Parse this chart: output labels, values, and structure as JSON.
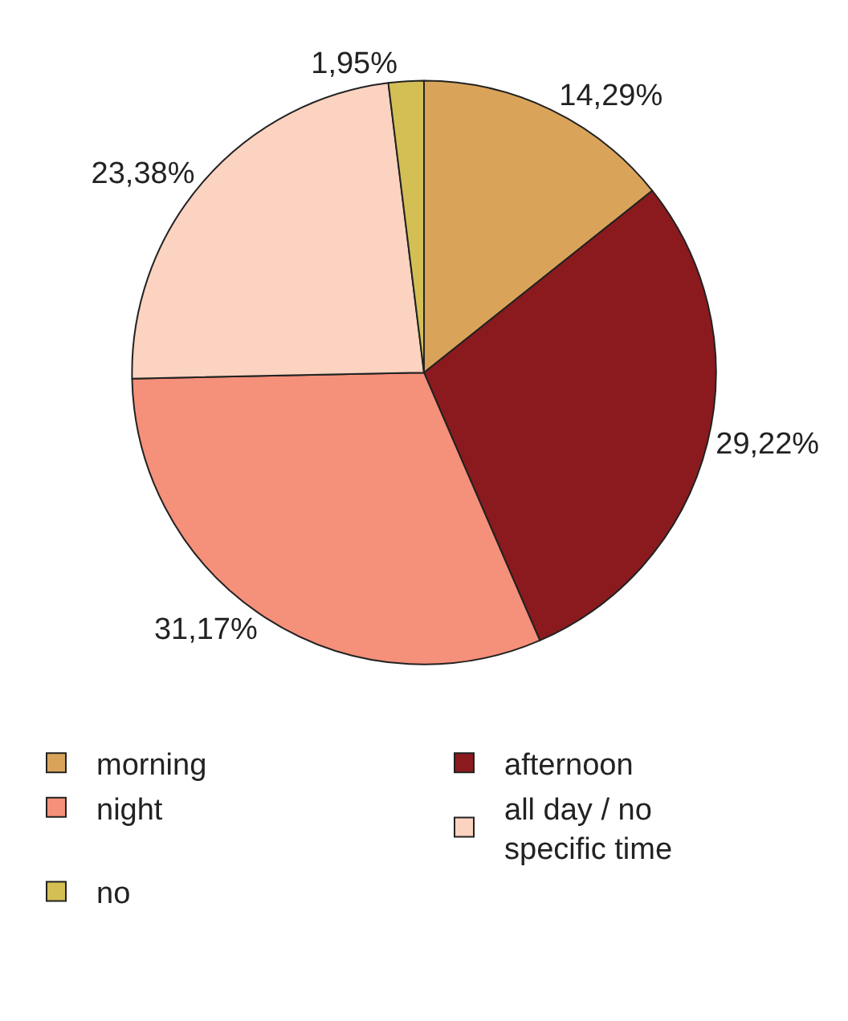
{
  "chart_data": {
    "type": "pie",
    "categories": [
      "morning",
      "afternoon",
      "night",
      "all day / no specific time",
      "no"
    ],
    "values": [
      14.29,
      29.22,
      31.17,
      23.38,
      1.95
    ],
    "value_labels": [
      "14,29%",
      "29,22%",
      "31,17%",
      "23,38%",
      "1,95%"
    ],
    "colors": [
      "#d9a45a",
      "#8b1a1e",
      "#f5907a",
      "#fbd3c0",
      "#d4bf55"
    ],
    "legend": "bottom"
  }
}
